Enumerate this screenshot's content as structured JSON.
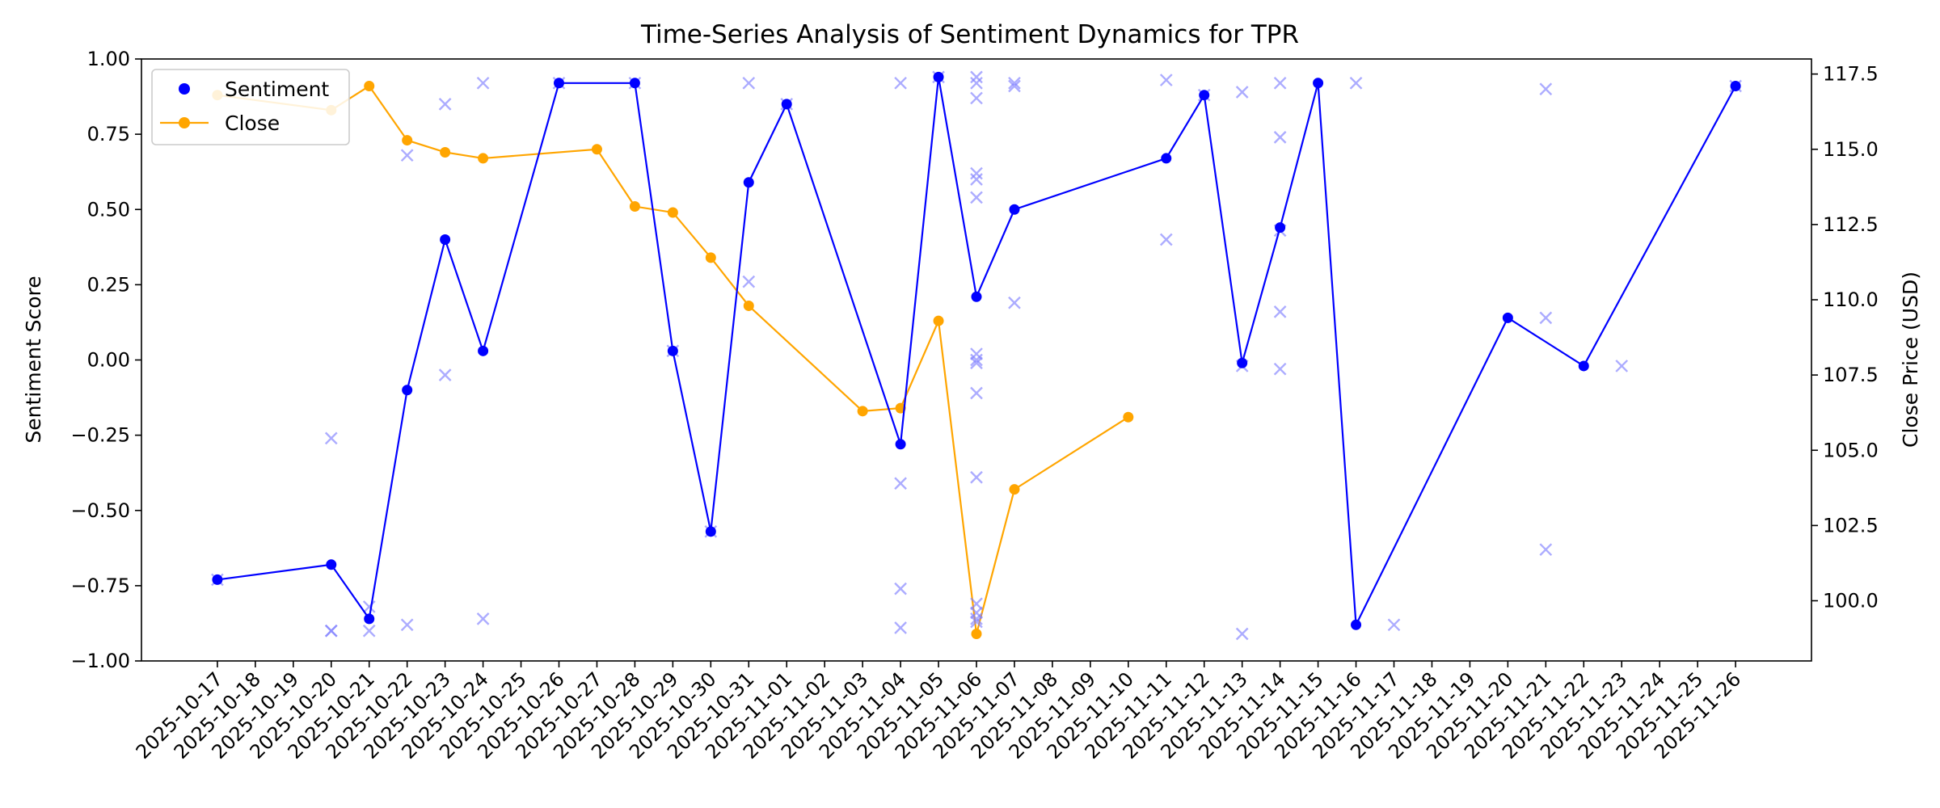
{
  "chart_data": {
    "type": "line",
    "title": "Time-Series Analysis of Sentiment Dynamics for TPR",
    "xlabel": "",
    "ylabel": "Sentiment Score",
    "y2label": "Close Price (USD)",
    "ylim": [
      -1.0,
      1.0
    ],
    "y2lim": [
      98.0,
      118.0
    ],
    "xlim": [
      "2025-10-15",
      "2025-11-28"
    ],
    "x_ticks": [
      "2025-10-17",
      "2025-10-18",
      "2025-10-19",
      "2025-10-20",
      "2025-10-21",
      "2025-10-22",
      "2025-10-23",
      "2025-10-24",
      "2025-10-25",
      "2025-10-26",
      "2025-10-27",
      "2025-10-28",
      "2025-10-29",
      "2025-10-30",
      "2025-10-31",
      "2025-11-01",
      "2025-11-02",
      "2025-11-03",
      "2025-11-04",
      "2025-11-05",
      "2025-11-06",
      "2025-11-07",
      "2025-11-08",
      "2025-11-09",
      "2025-11-10",
      "2025-11-11",
      "2025-11-12",
      "2025-11-13",
      "2025-11-14",
      "2025-11-15",
      "2025-11-16",
      "2025-11-17",
      "2025-11-18",
      "2025-11-19",
      "2025-11-20",
      "2025-11-21",
      "2025-11-22",
      "2025-11-23",
      "2025-11-24",
      "2025-11-25",
      "2025-11-26"
    ],
    "y_ticks": [
      "−1.00",
      "−0.75",
      "−0.50",
      "−0.25",
      "0.00",
      "0.25",
      "0.50",
      "0.75",
      "1.00"
    ],
    "y_tick_values": [
      -1.0,
      -0.75,
      -0.5,
      -0.25,
      0.0,
      0.25,
      0.5,
      0.75,
      1.0
    ],
    "y2_ticks": [
      "100.0",
      "102.5",
      "105.0",
      "107.5",
      "110.0",
      "112.5",
      "115.0",
      "117.5"
    ],
    "y2_tick_values": [
      100.0,
      102.5,
      105.0,
      107.5,
      110.0,
      112.5,
      115.0,
      117.5
    ],
    "legend": {
      "placement": "top-left",
      "entries": [
        "Sentiment",
        "Close"
      ]
    },
    "colors": {
      "sentiment": "#0000ff",
      "close": "#ffa500",
      "raw": "#8080ff"
    },
    "series": [
      {
        "name": "Sentiment",
        "axis": "left",
        "x": [
          "2025-10-17",
          "2025-10-20",
          "2025-10-21",
          "2025-10-22",
          "2025-10-23",
          "2025-10-24",
          "2025-10-26",
          "2025-10-28",
          "2025-10-29",
          "2025-10-30",
          "2025-10-31",
          "2025-11-01",
          "2025-11-04",
          "2025-11-05",
          "2025-11-06",
          "2025-11-07",
          "2025-11-11",
          "2025-11-12",
          "2025-11-13",
          "2025-11-14",
          "2025-11-15",
          "2025-11-16",
          "2025-11-20",
          "2025-11-22",
          "2025-11-26"
        ],
        "values": [
          -0.73,
          -0.68,
          -0.86,
          -0.1,
          0.4,
          0.03,
          0.92,
          0.92,
          0.03,
          -0.57,
          0.59,
          0.85,
          -0.28,
          0.94,
          0.21,
          0.5,
          0.67,
          0.88,
          -0.01,
          0.44,
          0.92,
          -0.88,
          0.14,
          -0.02,
          0.91
        ]
      },
      {
        "name": "Close",
        "axis": "right",
        "x": [
          "2025-10-17",
          "2025-10-20",
          "2025-10-21",
          "2025-10-22",
          "2025-10-23",
          "2025-10-24",
          "2025-10-27",
          "2025-10-28",
          "2025-10-29",
          "2025-10-30",
          "2025-10-31",
          "2025-11-03",
          "2025-11-04",
          "2025-11-05",
          "2025-11-06",
          "2025-11-07",
          "2025-11-10"
        ],
        "values": [
          116.8,
          116.3,
          117.1,
          115.3,
          114.9,
          114.7,
          115.0,
          113.1,
          112.9,
          111.4,
          109.8,
          106.3,
          106.4,
          109.3,
          98.9,
          103.7,
          106.1
        ]
      },
      {
        "name": "",
        "type": "scatter",
        "axis": "left",
        "x": [
          "2025-10-17",
          "2025-10-20",
          "2025-10-20",
          "2025-10-20",
          "2025-10-21",
          "2025-10-21",
          "2025-10-22",
          "2025-10-22",
          "2025-10-23",
          "2025-10-23",
          "2025-10-24",
          "2025-10-24",
          "2025-10-26",
          "2025-10-28",
          "2025-10-29",
          "2025-10-30",
          "2025-10-31",
          "2025-10-31",
          "2025-11-01",
          "2025-11-04",
          "2025-11-04",
          "2025-11-04",
          "2025-11-04",
          "2025-11-05",
          "2025-11-06",
          "2025-11-06",
          "2025-11-06",
          "2025-11-06",
          "2025-11-06",
          "2025-11-06",
          "2025-11-06",
          "2025-11-06",
          "2025-11-06",
          "2025-11-06",
          "2025-11-06",
          "2025-11-06",
          "2025-11-06",
          "2025-11-06",
          "2025-11-06",
          "2025-11-07",
          "2025-11-07",
          "2025-11-07",
          "2025-11-11",
          "2025-11-11",
          "2025-11-12",
          "2025-11-13",
          "2025-11-13",
          "2025-11-13",
          "2025-11-14",
          "2025-11-14",
          "2025-11-14",
          "2025-11-14",
          "2025-11-14",
          "2025-11-16",
          "2025-11-17",
          "2025-11-21",
          "2025-11-21",
          "2025-11-21",
          "2025-11-23",
          "2025-11-26"
        ],
        "values": [
          -0.73,
          -0.26,
          -0.9,
          -0.9,
          -0.82,
          -0.9,
          0.68,
          -0.88,
          0.85,
          -0.05,
          0.92,
          -0.86,
          0.92,
          0.92,
          0.03,
          -0.57,
          0.92,
          0.26,
          0.85,
          0.92,
          -0.41,
          -0.76,
          -0.89,
          0.94,
          0.94,
          0.92,
          0.87,
          0.62,
          0.6,
          0.54,
          0.02,
          0.0,
          -0.01,
          -0.11,
          -0.39,
          -0.81,
          -0.84,
          -0.86,
          -0.87,
          0.92,
          0.91,
          0.19,
          0.93,
          0.4,
          0.88,
          0.89,
          -0.02,
          -0.91,
          0.92,
          0.74,
          0.43,
          0.16,
          -0.03,
          0.92,
          -0.88,
          0.9,
          -0.63,
          0.14,
          -0.02,
          0.91
        ]
      }
    ]
  }
}
